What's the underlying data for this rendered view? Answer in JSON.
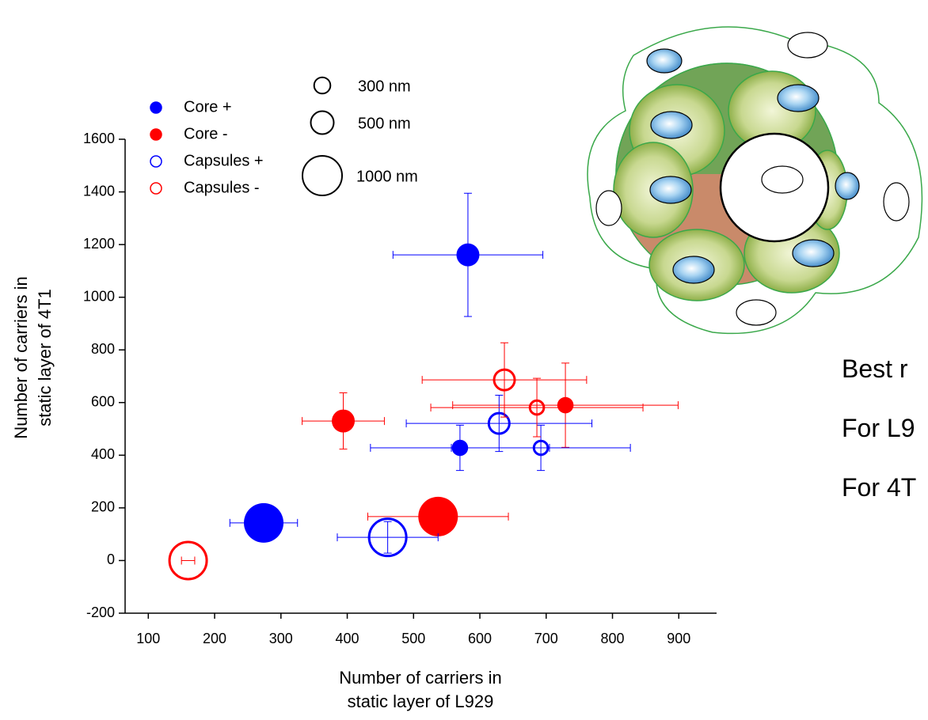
{
  "chart_data": {
    "type": "scatter",
    "xlabel": [
      "Number of carriers in",
      "static layer of L929"
    ],
    "ylabel": [
      "Number of carriers in",
      "static layer of 4T1"
    ],
    "xlim": [
      65,
      957
    ],
    "xticks": [
      100,
      200,
      300,
      400,
      500,
      600,
      700,
      800,
      900
    ],
    "ylim": [
      -200,
      1600
    ],
    "yticks": [
      -200,
      0,
      200,
      400,
      600,
      800,
      1000,
      1200,
      1400,
      1600
    ],
    "size_legend": [
      {
        "value": 300,
        "label": "300 nm"
      },
      {
        "value": 500,
        "label": "500 nm"
      },
      {
        "value": 1000,
        "label": "1000 nm"
      }
    ],
    "series": [
      {
        "name": "Core +",
        "color": "#0000ff",
        "filled": true,
        "x": [
          582,
          570,
          274
        ],
        "y": [
          1161,
          428,
          143
        ],
        "xerr": [
          113,
          135,
          51
        ],
        "yerr": [
          234,
          86,
          null
        ],
        "sizes": [
          500,
          300,
          1000
        ]
      },
      {
        "name": "Core -",
        "color": "#ff0000",
        "filled": true,
        "x": [
          394,
          729,
          537
        ],
        "y": [
          530,
          590,
          167
        ],
        "xerr": [
          62,
          170,
          106
        ],
        "yerr": [
          107,
          160,
          null
        ],
        "sizes": [
          500,
          300,
          1000
        ]
      },
      {
        "name": "Capsules +",
        "color": "#0000ff",
        "filled": false,
        "x": [
          629,
          692,
          461
        ],
        "y": [
          521,
          428,
          88
        ],
        "xerr": [
          140,
          135,
          76
        ],
        "yerr": [
          107,
          86,
          60
        ],
        "sizes": [
          500,
          300,
          1000
        ]
      },
      {
        "name": "Capsules -",
        "color": "#ff0000",
        "filled": false,
        "x": [
          637,
          686,
          160
        ],
        "y": [
          686,
          581,
          0
        ],
        "xerr": [
          124,
          160,
          10
        ],
        "yerr": [
          141,
          111,
          null
        ],
        "sizes": [
          500,
          300,
          1000
        ]
      }
    ]
  },
  "side_text": [
    "Best r",
    "For L9",
    "For 4T"
  ]
}
